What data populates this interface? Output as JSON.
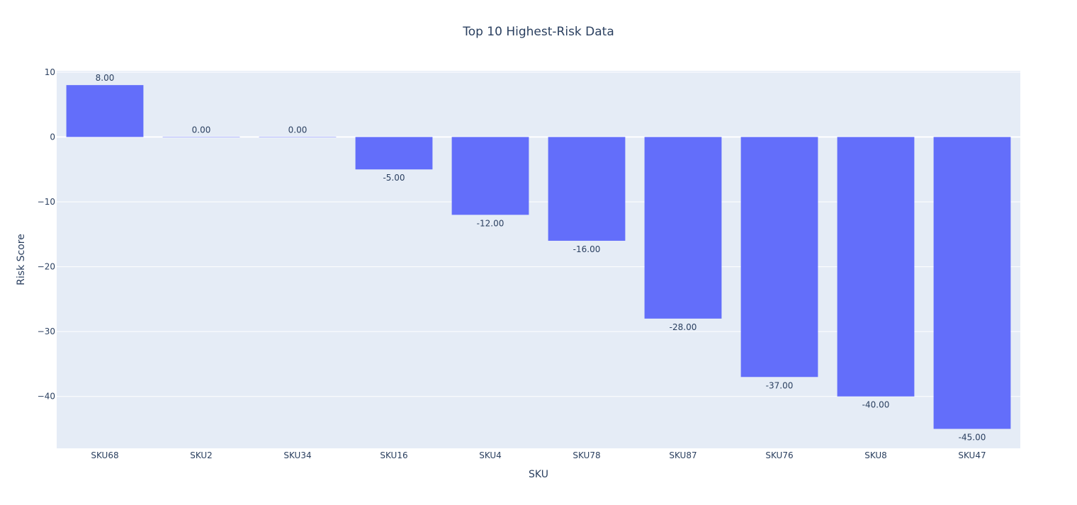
{
  "chart_data": {
    "type": "bar",
    "title": "Top 10 Highest-Risk Data",
    "xlabel": "SKU",
    "ylabel": "Risk Score",
    "categories": [
      "SKU68",
      "SKU2",
      "SKU34",
      "SKU16",
      "SKU4",
      "SKU78",
      "SKU87",
      "SKU76",
      "SKU8",
      "SKU47"
    ],
    "values": [
      8,
      0,
      0,
      -5,
      -12,
      -16,
      -28,
      -37,
      -40,
      -45
    ],
    "data_labels": [
      "8.00",
      "0.00",
      "0.00",
      "-5.00",
      "-12.00",
      "-16.00",
      "-28.00",
      "-37.00",
      "-40.00",
      "-45.00"
    ],
    "ylim": [
      -48,
      10.2
    ],
    "yticks": [
      10,
      0,
      -10,
      -20,
      -30,
      -40
    ],
    "ytick_labels": [
      "10",
      "0",
      "−10",
      "−20",
      "−30",
      "−40"
    ],
    "grid": true,
    "legend": "none",
    "colors": {
      "bar": "#636efa",
      "plot_bg": "#e5ecf6",
      "grid": "#ffffff",
      "text": "#2a3f5f"
    }
  }
}
